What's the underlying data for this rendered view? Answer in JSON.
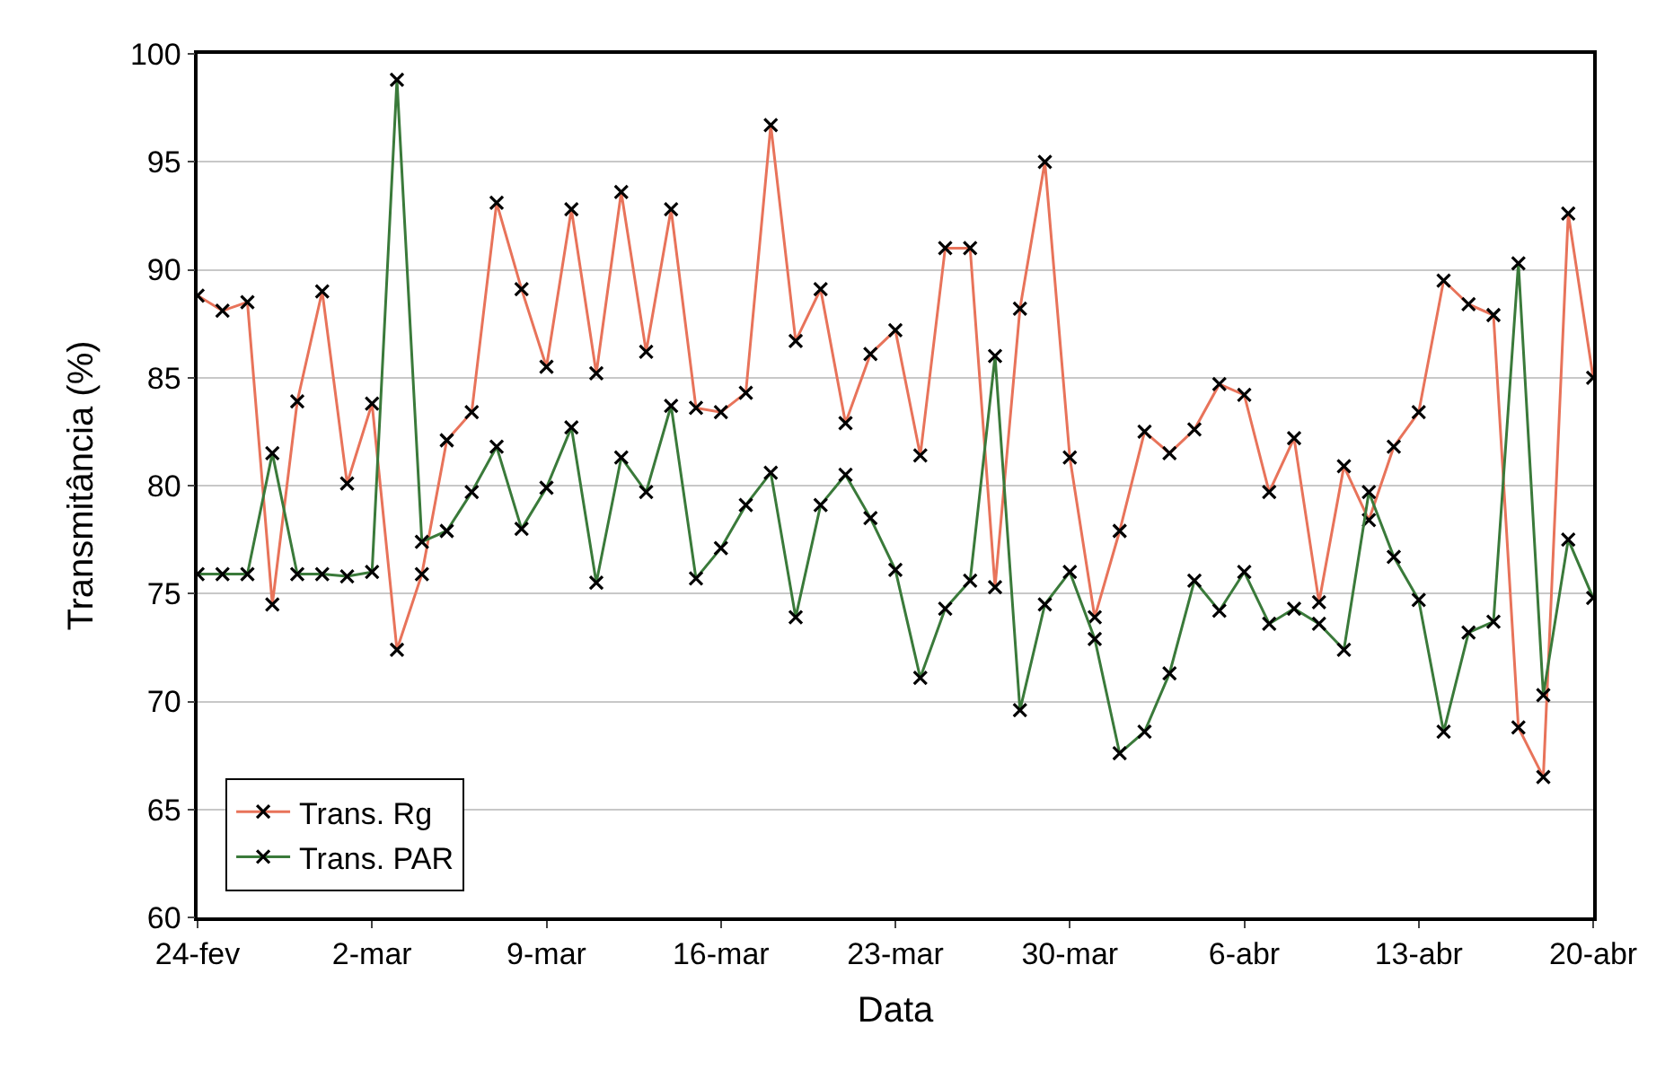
{
  "chart_data": {
    "type": "line",
    "xlabel": "Data",
    "ylabel": "Transmitância (%)",
    "x": [
      "--02-24",
      "--02-25",
      "--02-26",
      "--02-27",
      "--02-28",
      "--02-29",
      "--03-01",
      "--03-02",
      "--03-03",
      "--03-04",
      "--03-05",
      "--03-06",
      "--03-07",
      "--03-08",
      "--03-09",
      "--03-10",
      "--03-11",
      "--03-12",
      "--03-13",
      "--03-14",
      "--03-15",
      "--03-16",
      "--03-17",
      "--03-18",
      "--03-19",
      "--03-20",
      "--03-21",
      "--03-22",
      "--03-23",
      "--03-24",
      "--03-25",
      "--03-26",
      "--03-27",
      "--03-28",
      "--03-29",
      "--03-30",
      "--03-31",
      "--04-01",
      "--04-02",
      "--04-03",
      "--04-04",
      "--04-05",
      "--04-06",
      "--04-07",
      "--04-08",
      "--04-09",
      "--04-10",
      "--04-11",
      "--04-12",
      "--04-13",
      "--04-14",
      "--04-15",
      "--04-16",
      "--04-17",
      "--04-18",
      "--04-19",
      "--04-20"
    ],
    "series": [
      {
        "name": "Trans. Rg",
        "color": "#e8735a",
        "marker": "cross",
        "values": [
          88.8,
          88.1,
          88.5,
          74.5,
          83.9,
          89.0,
          80.1,
          83.8,
          72.4,
          75.9,
          82.1,
          83.4,
          93.1,
          89.1,
          85.5,
          92.8,
          85.2,
          93.6,
          86.2,
          92.8,
          83.6,
          83.4,
          84.3,
          96.7,
          86.7,
          89.1,
          82.9,
          86.1,
          87.2,
          81.4,
          91.0,
          91.0,
          75.3,
          88.2,
          95.0,
          81.3,
          73.9,
          77.9,
          82.5,
          81.5,
          82.6,
          84.7,
          84.2,
          79.7,
          82.2,
          74.6,
          80.9,
          78.4,
          81.8,
          83.4,
          89.5,
          88.4,
          87.9,
          68.8,
          66.5,
          92.6,
          85.0
        ]
      },
      {
        "name": "Trans. PAR",
        "color": "#3a7a3a",
        "marker": "cross",
        "values": [
          75.9,
          75.9,
          75.9,
          81.5,
          75.9,
          75.9,
          75.8,
          76.0,
          98.8,
          77.4,
          77.9,
          79.7,
          81.8,
          78.0,
          79.9,
          82.7,
          75.5,
          81.3,
          79.7,
          83.7,
          75.7,
          77.1,
          79.1,
          80.6,
          73.9,
          79.1,
          80.5,
          78.5,
          76.1,
          71.1,
          74.3,
          75.6,
          86.0,
          69.6,
          74.5,
          76.0,
          72.9,
          67.6,
          68.6,
          71.3,
          75.6,
          74.2,
          76.0,
          73.6,
          74.3,
          73.6,
          72.4,
          79.7,
          76.7,
          74.7,
          68.6,
          73.2,
          73.7,
          90.3,
          70.3,
          77.5,
          74.8
        ]
      }
    ],
    "xlim": [
      "--02-24",
      "--04-20"
    ],
    "xticks": [
      {
        "value": "--02-24",
        "label": "24-fev"
      },
      {
        "value": "--03-02",
        "label": "2-mar"
      },
      {
        "value": "--03-09",
        "label": "9-mar"
      },
      {
        "value": "--03-16",
        "label": "16-mar"
      },
      {
        "value": "--03-23",
        "label": "23-mar"
      },
      {
        "value": "--03-30",
        "label": "30-mar"
      },
      {
        "value": "--04-06",
        "label": "6-abr"
      },
      {
        "value": "--04-13",
        "label": "13-abr"
      },
      {
        "value": "--04-20",
        "label": "20-abr"
      }
    ],
    "ylim": [
      60,
      100
    ],
    "yticks": [
      60,
      65,
      70,
      75,
      80,
      85,
      90,
      95,
      100
    ],
    "grid": "y",
    "legend": "bottom left",
    "line_style": "solid"
  }
}
